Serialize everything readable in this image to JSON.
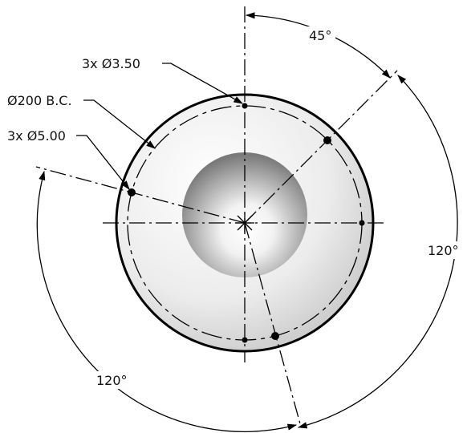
{
  "drawing": {
    "callouts": {
      "bolt_circle": "Ø200 B.C.",
      "small_holes": "3x Ø3.50",
      "large_holes": "3x Ø5.00"
    },
    "angles": {
      "top": "45°",
      "right": "120°",
      "bottom_left": "120°"
    }
  },
  "colors": {
    "line": "#000000",
    "disc_fill_light": "#ffffff",
    "disc_fill_dark": "#cfcfcf",
    "recess_dark": "#808080"
  }
}
